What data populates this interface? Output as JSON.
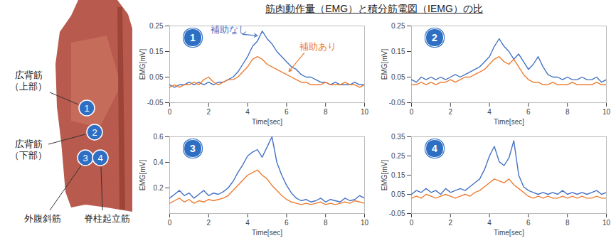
{
  "title": "筋肉動作量（EMG）と積分筋電図（IEMG）の比",
  "figure": {
    "markers": [
      {
        "number": "1",
        "label": "広背筋（上部）"
      },
      {
        "number": "2",
        "label": "広背筋（下部）"
      },
      {
        "number": "3",
        "label": "外腹斜筋"
      },
      {
        "number": "4",
        "label": "脊柱起立筋"
      }
    ]
  },
  "chart_data": [
    {
      "type": "line",
      "title": "1",
      "x_label": "Time[sec]",
      "y_label": "EMG[mV]",
      "x": [
        0,
        0.25,
        0.5,
        0.75,
        1,
        1.25,
        1.5,
        1.75,
        2,
        2.25,
        2.5,
        2.75,
        3,
        3.25,
        3.5,
        3.75,
        4,
        4.25,
        4.5,
        4.75,
        5,
        5.25,
        5.5,
        5.75,
        6,
        6.25,
        6.5,
        6.75,
        7,
        7.25,
        7.5,
        7.75,
        8,
        8.25,
        8.5,
        8.75,
        9,
        9.25,
        9.5,
        9.75,
        10
      ],
      "xlim": [
        0,
        10
      ],
      "xticks": [
        0,
        2,
        4,
        6,
        8,
        10
      ],
      "ylim": [
        -0.05,
        0.25
      ],
      "yticks": [
        -0.05,
        0.05,
        0.15,
        0.25
      ],
      "grid": false,
      "series": [
        {
          "name": "補助なし",
          "color": "#4472c4",
          "values": [
            0.02,
            0.01,
            0.02,
            0.02,
            0.03,
            0.02,
            0.03,
            0.02,
            0.03,
            0.02,
            0.03,
            0.03,
            0.04,
            0.05,
            0.07,
            0.1,
            0.13,
            0.17,
            0.19,
            0.23,
            0.2,
            0.18,
            0.15,
            0.13,
            0.11,
            0.09,
            0.08,
            0.06,
            0.05,
            0.05,
            0.04,
            0.03,
            0.03,
            0.02,
            0.03,
            0.02,
            0.02,
            0.02,
            0.03,
            0.02,
            0.02
          ]
        },
        {
          "name": "補助あり",
          "color": "#ed7d31",
          "values": [
            0.01,
            0.02,
            0.01,
            0.02,
            0.02,
            0.03,
            0.02,
            0.04,
            0.05,
            0.03,
            0.02,
            0.03,
            0.04,
            0.04,
            0.05,
            0.07,
            0.09,
            0.12,
            0.13,
            0.12,
            0.1,
            0.09,
            0.08,
            0.07,
            0.06,
            0.05,
            0.04,
            0.03,
            0.03,
            0.02,
            0.02,
            0.02,
            0.03,
            0.02,
            0.02,
            0.02,
            0.03,
            0.02,
            0.02,
            0.01,
            0.02
          ]
        }
      ]
    },
    {
      "type": "line",
      "title": "2",
      "x_label": "Time[sec]",
      "y_label": "EMG[mV]",
      "x": [
        0,
        0.25,
        0.5,
        0.75,
        1,
        1.25,
        1.5,
        1.75,
        2,
        2.25,
        2.5,
        2.75,
        3,
        3.25,
        3.5,
        3.75,
        4,
        4.25,
        4.5,
        4.75,
        5,
        5.25,
        5.5,
        5.75,
        6,
        6.25,
        6.5,
        6.75,
        7,
        7.25,
        7.5,
        7.75,
        8,
        8.25,
        8.5,
        8.75,
        9,
        9.25,
        9.5,
        9.75,
        10
      ],
      "xlim": [
        0,
        10
      ],
      "xticks": [
        0,
        2,
        4,
        6,
        8,
        10
      ],
      "ylim": [
        -0.05,
        0.25
      ],
      "yticks": [
        -0.05,
        0.05,
        0.15,
        0.25
      ],
      "grid": false,
      "series": [
        {
          "color": "#4472c4",
          "values": [
            0.04,
            0.03,
            0.05,
            0.04,
            0.05,
            0.04,
            0.05,
            0.04,
            0.05,
            0.06,
            0.05,
            0.06,
            0.07,
            0.08,
            0.09,
            0.11,
            0.13,
            0.17,
            0.2,
            0.17,
            0.15,
            0.12,
            0.14,
            0.11,
            0.08,
            0.1,
            0.13,
            0.09,
            0.06,
            0.05,
            0.05,
            0.04,
            0.05,
            0.04,
            0.04,
            0.05,
            0.04,
            0.04,
            0.05,
            0.03,
            0.04
          ]
        },
        {
          "color": "#ed7d31",
          "values": [
            0.02,
            0.02,
            0.03,
            0.02,
            0.03,
            0.02,
            0.03,
            0.03,
            0.04,
            0.03,
            0.04,
            0.05,
            0.05,
            0.06,
            0.07,
            0.08,
            0.1,
            0.12,
            0.13,
            0.11,
            0.1,
            0.12,
            0.09,
            0.06,
            0.04,
            0.03,
            0.03,
            0.02,
            0.02,
            0.03,
            0.02,
            0.02,
            0.02,
            0.03,
            0.02,
            0.02,
            0.02,
            0.02,
            0.03,
            0.02,
            0.02
          ]
        }
      ]
    },
    {
      "type": "line",
      "title": "3",
      "x_label": "Time[sec]",
      "y_label": "EMG[mV]",
      "x": [
        0,
        0.25,
        0.5,
        0.75,
        1,
        1.25,
        1.5,
        1.75,
        2,
        2.25,
        2.5,
        2.75,
        3,
        3.25,
        3.5,
        3.75,
        4,
        4.25,
        4.5,
        4.75,
        5,
        5.25,
        5.5,
        5.75,
        6,
        6.25,
        6.5,
        6.75,
        7,
        7.25,
        7.5,
        7.75,
        8,
        8.25,
        8.5,
        8.75,
        9,
        9.25,
        9.5,
        9.75,
        10
      ],
      "xlim": [
        0,
        10
      ],
      "xticks": [
        0,
        2,
        4,
        6,
        8,
        10
      ],
      "ylim": [
        0,
        0.6
      ],
      "yticks": [
        0.2,
        0.4,
        0.6
      ],
      "grid": false,
      "series": [
        {
          "color": "#4472c4",
          "values": [
            0.12,
            0.15,
            0.18,
            0.14,
            0.16,
            0.12,
            0.15,
            0.18,
            0.14,
            0.16,
            0.15,
            0.17,
            0.2,
            0.25,
            0.32,
            0.38,
            0.45,
            0.48,
            0.5,
            0.44,
            0.52,
            0.6,
            0.4,
            0.3,
            0.22,
            0.16,
            0.12,
            0.1,
            0.11,
            0.09,
            0.1,
            0.12,
            0.09,
            0.11,
            0.1,
            0.09,
            0.12,
            0.1,
            0.11,
            0.14,
            0.12
          ]
        },
        {
          "color": "#ed7d31",
          "values": [
            0.08,
            0.1,
            0.12,
            0.09,
            0.11,
            0.08,
            0.1,
            0.09,
            0.11,
            0.1,
            0.11,
            0.12,
            0.14,
            0.18,
            0.22,
            0.26,
            0.3,
            0.32,
            0.34,
            0.3,
            0.27,
            0.22,
            0.18,
            0.14,
            0.11,
            0.09,
            0.08,
            0.07,
            0.08,
            0.07,
            0.08,
            0.09,
            0.07,
            0.08,
            0.07,
            0.08,
            0.09,
            0.08,
            0.1,
            0.09,
            0.08
          ]
        }
      ]
    },
    {
      "type": "line",
      "title": "4",
      "x_label": "Time[sec]",
      "y_label": "EMG[mV]",
      "x": [
        0,
        0.25,
        0.5,
        0.75,
        1,
        1.25,
        1.5,
        1.75,
        2,
        2.25,
        2.5,
        2.75,
        3,
        3.25,
        3.5,
        3.75,
        4,
        4.25,
        4.5,
        4.75,
        5,
        5.25,
        5.5,
        5.75,
        6,
        6.25,
        6.5,
        6.75,
        7,
        7.25,
        7.5,
        7.75,
        8,
        8.25,
        8.5,
        8.75,
        9,
        9.25,
        9.5,
        9.75,
        10
      ],
      "xlim": [
        0,
        10
      ],
      "xticks": [
        0,
        2,
        4,
        6,
        8,
        10
      ],
      "ylim": [
        -0.05,
        0.35
      ],
      "yticks": [
        -0.05,
        0.05,
        0.15,
        0.25,
        0.35
      ],
      "grid": false,
      "series": [
        {
          "color": "#4472c4",
          "values": [
            0.05,
            0.07,
            0.06,
            0.08,
            0.06,
            0.07,
            0.05,
            0.08,
            0.06,
            0.07,
            0.08,
            0.07,
            0.09,
            0.11,
            0.13,
            0.18,
            0.25,
            0.3,
            0.22,
            0.2,
            0.24,
            0.33,
            0.15,
            0.09,
            0.07,
            0.06,
            0.05,
            0.06,
            0.05,
            0.06,
            0.05,
            0.07,
            0.05,
            0.06,
            0.05,
            0.06,
            0.05,
            0.06,
            0.07,
            0.05,
            0.06
          ]
        },
        {
          "color": "#ed7d31",
          "values": [
            0.03,
            0.04,
            0.03,
            0.05,
            0.04,
            0.03,
            0.04,
            0.05,
            0.04,
            0.03,
            0.04,
            0.05,
            0.04,
            0.06,
            0.07,
            0.09,
            0.11,
            0.13,
            0.12,
            0.11,
            0.13,
            0.1,
            0.08,
            0.06,
            0.04,
            0.03,
            0.04,
            0.03,
            0.04,
            0.03,
            0.03,
            0.04,
            0.03,
            0.04,
            0.03,
            0.04,
            0.03,
            0.03,
            0.04,
            0.03,
            0.03
          ]
        }
      ]
    }
  ]
}
